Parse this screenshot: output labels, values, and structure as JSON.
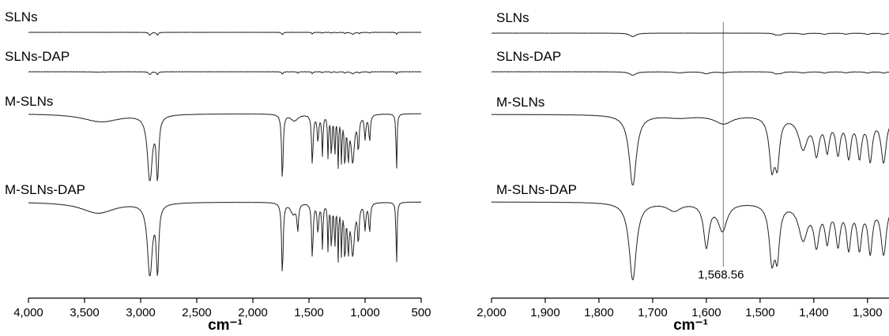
{
  "chart_data": [
    {
      "type": "line",
      "xlabel": "cm⁻¹",
      "xlim": [
        4000,
        500
      ],
      "xticks": [
        4000,
        3500,
        3000,
        2500,
        2000,
        1500,
        1000,
        500
      ],
      "xtick_labels": [
        "4,000",
        "3,500",
        "3,000",
        "2,500",
        "2,000",
        "1,500",
        "1,000",
        "500"
      ],
      "series": [
        {
          "name": "SLNs",
          "baseline": 0,
          "scale": 0.18,
          "bands": [
            [
              2918,
              1.0,
              10
            ],
            [
              2850,
              0.9,
              9
            ],
            [
              1737,
              0.85,
              7
            ],
            [
              1470,
              0.55,
              6
            ],
            [
              1380,
              0.3,
              5
            ],
            [
              1300,
              0.4,
              4
            ],
            [
              1250,
              0.35,
              4
            ],
            [
              1180,
              0.4,
              6
            ],
            [
              1110,
              0.6,
              15
            ],
            [
              1050,
              0.35,
              8
            ],
            [
              960,
              0.3,
              6
            ],
            [
              720,
              0.7,
              5
            ]
          ]
        },
        {
          "name": "SLNs-DAP",
          "baseline": 1,
          "scale": 0.18,
          "bands": [
            [
              3380,
              0.1,
              60
            ],
            [
              2918,
              1.0,
              10
            ],
            [
              2850,
              0.9,
              9
            ],
            [
              1737,
              0.8,
              7
            ],
            [
              1600,
              0.45,
              6
            ],
            [
              1470,
              0.6,
              6
            ],
            [
              1380,
              0.35,
              5
            ],
            [
              1300,
              0.45,
              4
            ],
            [
              1250,
              0.4,
              4
            ],
            [
              1180,
              0.45,
              6
            ],
            [
              1110,
              0.65,
              15
            ],
            [
              1050,
              0.4,
              8
            ],
            [
              960,
              0.35,
              6
            ],
            [
              720,
              0.75,
              5
            ]
          ]
        },
        {
          "name": "M-SLNs",
          "baseline": 2,
          "scale": 0.85,
          "bands": [
            [
              3350,
              0.12,
              200
            ],
            [
              2918,
              1.0,
              25
            ],
            [
              2850,
              0.95,
              12
            ],
            [
              1737,
              1.0,
              8
            ],
            [
              1630,
              0.1,
              40
            ],
            [
              1470,
              0.75,
              8
            ],
            [
              1420,
              0.4,
              8
            ],
            [
              1380,
              0.6,
              6
            ],
            [
              1330,
              0.65,
              5
            ],
            [
              1300,
              0.7,
              5
            ],
            [
              1270,
              0.65,
              5
            ],
            [
              1240,
              0.75,
              5
            ],
            [
              1210,
              0.7,
              5
            ],
            [
              1180,
              0.8,
              6
            ],
            [
              1150,
              0.6,
              8
            ],
            [
              1110,
              0.7,
              18
            ],
            [
              1060,
              0.5,
              8
            ],
            [
              1000,
              0.35,
              8
            ],
            [
              960,
              0.4,
              8
            ],
            [
              720,
              0.9,
              5
            ]
          ]
        },
        {
          "name": "M-SLNs-DAP",
          "baseline": 3,
          "scale": 0.85,
          "bands": [
            [
              3380,
              0.15,
              180
            ],
            [
              2918,
              1.0,
              25
            ],
            [
              2850,
              0.95,
              12
            ],
            [
              1737,
              1.0,
              8
            ],
            [
              1640,
              0.15,
              30
            ],
            [
              1600,
              0.35,
              8
            ],
            [
              1470,
              0.75,
              8
            ],
            [
              1420,
              0.4,
              8
            ],
            [
              1380,
              0.6,
              6
            ],
            [
              1330,
              0.65,
              5
            ],
            [
              1300,
              0.7,
              5
            ],
            [
              1270,
              0.65,
              5
            ],
            [
              1240,
              0.75,
              5
            ],
            [
              1210,
              0.7,
              5
            ],
            [
              1180,
              0.8,
              6
            ],
            [
              1150,
              0.6,
              8
            ],
            [
              1110,
              0.7,
              18
            ],
            [
              1060,
              0.5,
              8
            ],
            [
              1000,
              0.35,
              8
            ],
            [
              960,
              0.4,
              8
            ],
            [
              720,
              0.9,
              5
            ]
          ]
        }
      ]
    },
    {
      "type": "line",
      "xlabel": "cm⁻¹",
      "xlim": [
        2000,
        1260
      ],
      "xticks": [
        2000,
        1900,
        1800,
        1700,
        1600,
        1500,
        1400,
        1300
      ],
      "xtick_labels": [
        "2,000",
        "1,900",
        "1,800",
        "1,700",
        "1,600",
        "1,500",
        "1,400",
        "1,300"
      ],
      "marker_line": 1568.56,
      "annotation": "1,568.56",
      "series": [
        {
          "name": "SLNs",
          "baseline": 0,
          "scale": 0.2,
          "bands": [
            [
              1737,
              1.0,
              7
            ],
            [
              1470,
              0.5,
              5
            ],
            [
              1462,
              0.4,
              4
            ],
            [
              1420,
              0.3,
              7
            ],
            [
              1380,
              0.35,
              5
            ],
            [
              1340,
              0.3,
              5
            ],
            [
              1300,
              0.35,
              5
            ],
            [
              1270,
              0.35,
              5
            ]
          ]
        },
        {
          "name": "SLNs-DAP",
          "baseline": 1,
          "scale": 0.2,
          "bands": [
            [
              1737,
              1.0,
              7
            ],
            [
              1650,
              0.3,
              10
            ],
            [
              1600,
              0.55,
              7
            ],
            [
              1568,
              0.25,
              8
            ],
            [
              1470,
              0.55,
              5
            ],
            [
              1462,
              0.4,
              4
            ],
            [
              1420,
              0.3,
              7
            ],
            [
              1380,
              0.35,
              5
            ],
            [
              1340,
              0.3,
              5
            ],
            [
              1300,
              0.35,
              5
            ],
            [
              1270,
              0.35,
              5
            ]
          ]
        },
        {
          "name": "M-SLNs",
          "baseline": 2,
          "scale": 0.9,
          "bands": [
            [
              1737,
              1.0,
              8
            ],
            [
              1650,
              0.04,
              35
            ],
            [
              1568,
              0.12,
              20
            ],
            [
              1478,
              0.7,
              6
            ],
            [
              1468,
              0.6,
              5
            ],
            [
              1420,
              0.45,
              10
            ],
            [
              1395,
              0.5,
              6
            ],
            [
              1375,
              0.45,
              5
            ],
            [
              1355,
              0.5,
              5
            ],
            [
              1335,
              0.55,
              5
            ],
            [
              1315,
              0.55,
              5
            ],
            [
              1295,
              0.6,
              5
            ],
            [
              1270,
              0.65,
              6
            ]
          ]
        },
        {
          "name": "M-SLNs-DAP",
          "baseline": 3,
          "scale": 0.9,
          "bands": [
            [
              1737,
              1.0,
              8
            ],
            [
              1660,
              0.1,
              15
            ],
            [
              1600,
              0.55,
              6
            ],
            [
              1570,
              0.35,
              10
            ],
            [
              1478,
              0.7,
              6
            ],
            [
              1468,
              0.6,
              5
            ],
            [
              1420,
              0.45,
              10
            ],
            [
              1395,
              0.5,
              6
            ],
            [
              1375,
              0.45,
              5
            ],
            [
              1355,
              0.5,
              5
            ],
            [
              1335,
              0.55,
              5
            ],
            [
              1315,
              0.55,
              5
            ],
            [
              1295,
              0.6,
              5
            ],
            [
              1270,
              0.65,
              6
            ]
          ]
        }
      ]
    }
  ]
}
